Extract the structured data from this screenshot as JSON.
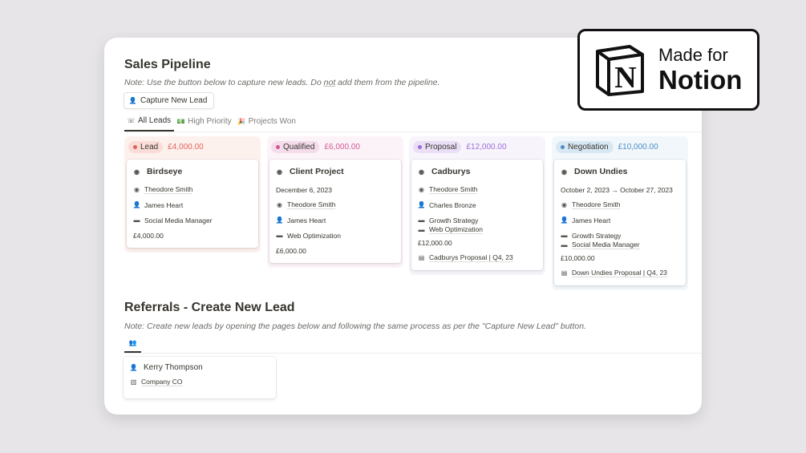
{
  "pipeline": {
    "title": "Sales Pipeline",
    "note_pre": "Note: Use the button below to capture new leads. Do ",
    "note_em": "not",
    "note_post": " add them from the pipeline.",
    "capture_button": "Capture New Lead",
    "tabs": [
      {
        "label": "All Leads",
        "icon": "phone-icon",
        "active": true
      },
      {
        "label": "High Priority",
        "icon": "money-icon",
        "active": false
      },
      {
        "label": "Projects Won",
        "icon": "party-popper-icon",
        "active": false
      }
    ]
  },
  "columns": [
    {
      "status": "Lead",
      "total": "£4,000.00",
      "color": "#e16259",
      "bg": "#fdf1ee",
      "pill": "#fbdcd7",
      "cards": [
        {
          "title": "Birdseye",
          "rows": [
            {
              "icon": "user-circle-icon",
              "text": "Theodore Smith",
              "u": true
            },
            {
              "icon": "person-icon",
              "text": "James Heart"
            },
            {
              "icon": "briefcase-icon",
              "text": "Social Media Manager"
            },
            {
              "icon": "",
              "text": "£4,000.00"
            }
          ]
        }
      ]
    },
    {
      "status": "Qualified",
      "total": "£6,000.00",
      "color": "#d15796",
      "bg": "#fcf3f8",
      "pill": "#f5dceb",
      "cards": [
        {
          "title": "Client Project",
          "rows": [
            {
              "icon": "",
              "text": "December 6, 2023"
            },
            {
              "icon": "user-circle-icon",
              "text": "Theodore Smith",
              "u": true
            },
            {
              "icon": "person-icon",
              "text": "James Heart"
            },
            {
              "icon": "briefcase-icon",
              "text": "Web Optimization"
            },
            {
              "icon": "",
              "text": "£6,000.00"
            }
          ]
        }
      ]
    },
    {
      "status": "Proposal",
      "total": "£12,000.00",
      "color": "#9a6dd7",
      "bg": "#f8f4fc",
      "pill": "#eadff6",
      "cards": [
        {
          "title": "Cadburys",
          "rows": [
            {
              "icon": "user-circle-icon",
              "text": "Theodore Smith",
              "u": true
            },
            {
              "icon": "person-icon",
              "text": "Charles Bronze"
            },
            {
              "icon": "briefcase-icon",
              "text": "Growth Strategy"
            },
            {
              "icon": "briefcase-icon",
              "text": "Web Optimization",
              "u": true,
              "tight": true
            },
            {
              "icon": "",
              "text": "£12,000.00"
            },
            {
              "icon": "document-icon",
              "text": "Cadburys Proposal | Q4, 23",
              "u": true
            }
          ]
        }
      ]
    },
    {
      "status": "Negotiation",
      "total": "£10,000.00",
      "color": "#4d8fc4",
      "bg": "#f1f7fb",
      "pill": "#d8e8f3",
      "cards": [
        {
          "title": "Down Undies",
          "rows": [
            {
              "icon": "",
              "text": "October 2, 2023 → October 27, 2023"
            },
            {
              "icon": "user-circle-icon",
              "text": "Theodore Smith",
              "u": true
            },
            {
              "icon": "person-icon",
              "text": "James Heart"
            },
            {
              "icon": "briefcase-icon",
              "text": "Growth Strategy"
            },
            {
              "icon": "briefcase-icon",
              "text": "Social Media Manager",
              "u": true,
              "tight": true
            },
            {
              "icon": "",
              "text": "£10,000.00"
            },
            {
              "icon": "document-icon",
              "text": "Down Undies Proposal | Q4, 23",
              "u": true
            }
          ]
        }
      ]
    }
  ],
  "referrals": {
    "title": "Referrals - Create New Lead",
    "note": "Note: Create new leads by opening the pages below and following the same process as per the \"Capture New Lead\" button.",
    "tab_icon": "person-add-icon",
    "cards": [
      {
        "name": "Kerry Thompson",
        "company": "Company CO"
      }
    ]
  },
  "badge": {
    "line1": "Made for",
    "line2": "Notion",
    "logo_letter": "N"
  }
}
